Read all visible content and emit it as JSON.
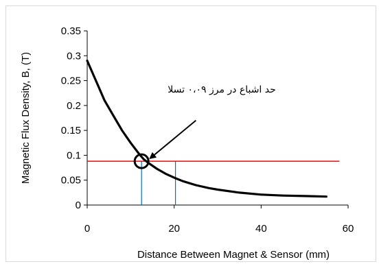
{
  "chart_data": {
    "type": "line",
    "title": "",
    "xlabel": "Distance Between Magnet & Sensor (mm)",
    "ylabel": "Magnetic Flux Density, B, (T)",
    "xlim": [
      0,
      60
    ],
    "ylim": [
      0,
      0.35
    ],
    "x_ticks": [
      "0",
      "20",
      "40",
      "60"
    ],
    "y_ticks": [
      "0",
      "0.05",
      "0.1",
      "0.15",
      "0.2",
      "0.25",
      "0.3",
      "0.35"
    ],
    "grid": false,
    "legend": "none",
    "series": [
      {
        "color": "#000000",
        "x": [
          0,
          2,
          4,
          6,
          8,
          10,
          12,
          13,
          14,
          16,
          18,
          20,
          22,
          25,
          28,
          30,
          35,
          40,
          45,
          50,
          55
        ],
        "y": [
          0.29,
          0.25,
          0.21,
          0.18,
          0.15,
          0.125,
          0.102,
          0.092,
          0.085,
          0.073,
          0.063,
          0.055,
          0.048,
          0.04,
          0.034,
          0.031,
          0.025,
          0.021,
          0.019,
          0.018,
          0.017
        ]
      }
    ],
    "threshold": {
      "y": 0.088,
      "x_from": 0,
      "x_to": 58,
      "color": "#ff0000"
    },
    "markers": [
      {
        "x": 12.5,
        "y": 0.088,
        "shape": "circle"
      }
    ],
    "drop_lines": [
      {
        "x": 12.5,
        "y": 0.088,
        "color": "#0070c0"
      },
      {
        "x": 20.3,
        "y": 0.088,
        "color": "#0070c0"
      }
    ],
    "annotation": {
      "text": "حد اشباع در مرز ۰،۰۹ تسلا",
      "arrow_from": {
        "x": 25,
        "y": 0.17
      },
      "arrow_to": {
        "x": 14.5,
        "y": 0.094
      }
    }
  }
}
